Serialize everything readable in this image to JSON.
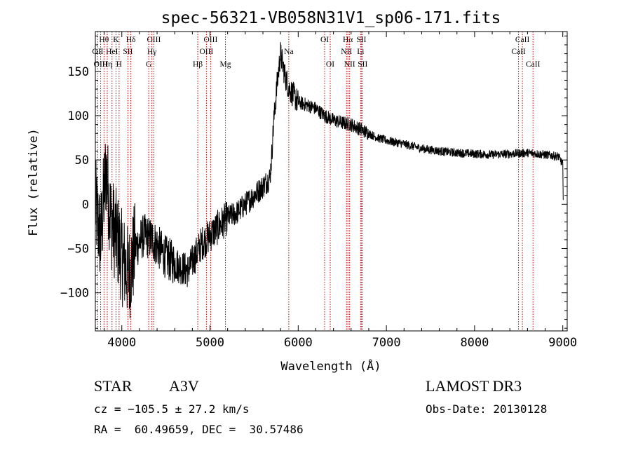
{
  "chart_data": {
    "type": "line",
    "title": "spec-56321-VB058N31V1_sp06-171.fits",
    "xlabel": "Wavelength (Å)",
    "ylabel": "Flux (relative)",
    "xlim": [
      3700,
      9050
    ],
    "ylim": [
      -143,
      195
    ],
    "xticks": [
      {
        "value": 4000,
        "label": "4000"
      },
      {
        "value": 5000,
        "label": "5000"
      },
      {
        "value": 6000,
        "label": "6000"
      },
      {
        "value": 7000,
        "label": "7000"
      },
      {
        "value": 8000,
        "label": "8000"
      },
      {
        "value": 9000,
        "label": "9000"
      }
    ],
    "yticks": [
      {
        "value": -100,
        "label": "−100"
      },
      {
        "value": -50,
        "label": "−50"
      },
      {
        "value": 0,
        "label": "0"
      },
      {
        "value": 50,
        "label": "50"
      },
      {
        "value": 100,
        "label": "100"
      },
      {
        "value": 150,
        "label": "150"
      }
    ],
    "spectrum_anchors": [
      [
        3700,
        0
      ],
      [
        3760,
        -40
      ],
      [
        3820,
        40
      ],
      [
        3880,
        -20
      ],
      [
        3950,
        -40
      ],
      [
        4000,
        -60
      ],
      [
        4080,
        -80
      ],
      [
        4150,
        -50
      ],
      [
        4250,
        -35
      ],
      [
        4350,
        -40
      ],
      [
        4500,
        -60
      ],
      [
        4650,
        -70
      ],
      [
        4750,
        -75
      ],
      [
        4850,
        -55
      ],
      [
        4900,
        -45
      ],
      [
        5000,
        -35
      ],
      [
        5100,
        -25
      ],
      [
        5200,
        -15
      ],
      [
        5300,
        -10
      ],
      [
        5400,
        0
      ],
      [
        5500,
        10
      ],
      [
        5600,
        20
      ],
      [
        5680,
        30
      ],
      [
        5700,
        55
      ],
      [
        5720,
        90
      ],
      [
        5760,
        135
      ],
      [
        5800,
        170
      ],
      [
        5850,
        145
      ],
      [
        5900,
        130
      ],
      [
        6000,
        115
      ],
      [
        6100,
        112
      ],
      [
        6200,
        108
      ],
      [
        6300,
        100
      ],
      [
        6400,
        95
      ],
      [
        6500,
        92
      ],
      [
        6600,
        90
      ],
      [
        6700,
        85
      ],
      [
        6800,
        80
      ],
      [
        6900,
        75
      ],
      [
        7000,
        72
      ],
      [
        7200,
        68
      ],
      [
        7400,
        63
      ],
      [
        7600,
        60
      ],
      [
        7800,
        58
      ],
      [
        8000,
        57
      ],
      [
        8200,
        56
      ],
      [
        8400,
        57
      ],
      [
        8600,
        58
      ],
      [
        8800,
        56
      ],
      [
        8950,
        54
      ],
      [
        9000,
        45
      ],
      [
        9005,
        0
      ]
    ],
    "lines": [
      {
        "label": "Hθ",
        "wavelength": 3798,
        "row": 0
      },
      {
        "label": "OII",
        "wavelength": 3727,
        "row": 1
      },
      {
        "label": "OIII",
        "wavelength": 3760,
        "row": 2
      },
      {
        "label": "K",
        "wavelength": 3934,
        "row": 0
      },
      {
        "label": "HeI",
        "wavelength": 3889,
        "row": 1
      },
      {
        "label": "Hη",
        "wavelength": 3835,
        "row": 2
      },
      {
        "label": "SII",
        "wavelength": 4069,
        "row": 1
      },
      {
        "label": "H",
        "wavelength": 3969,
        "row": 2
      },
      {
        "label": "Hδ",
        "wavelength": 4102,
        "row": 0
      },
      {
        "label": "OIII",
        "wavelength": 4363,
        "row": 0
      },
      {
        "label": "Hγ",
        "wavelength": 4341,
        "row": 1
      },
      {
        "label": "G",
        "wavelength": 4305,
        "row": 2
      },
      {
        "label": "OIII",
        "wavelength": 5007,
        "row": 0
      },
      {
        "label": "OIII",
        "wavelength": 4959,
        "row": 1
      },
      {
        "label": "Hβ",
        "wavelength": 4861,
        "row": 2
      },
      {
        "label": "Mg",
        "wavelength": 5175,
        "row": 2
      },
      {
        "label": "Na",
        "wavelength": 5893,
        "row": 1
      },
      {
        "label": "OI",
        "wavelength": 6300,
        "row": 0
      },
      {
        "label": "OI",
        "wavelength": 6363,
        "row": 2
      },
      {
        "label": "Hα",
        "wavelength": 6563,
        "row": 0
      },
      {
        "label": "SII",
        "wavelength": 6716,
        "row": 0
      },
      {
        "label": "NII",
        "wavelength": 6548,
        "row": 1
      },
      {
        "label": "Li",
        "wavelength": 6708,
        "row": 1
      },
      {
        "label": "NII",
        "wavelength": 6583,
        "row": 2
      },
      {
        "label": "SII",
        "wavelength": 6731,
        "row": 2
      },
      {
        "label": "CaII",
        "wavelength": 8542,
        "row": 0
      },
      {
        "label": "CaII",
        "wavelength": 8498,
        "row": 1
      },
      {
        "label": "CaII",
        "wavelength": 8662,
        "row": 2
      }
    ]
  },
  "info": {
    "object_class": "STAR",
    "subclass": "A3V",
    "survey": "LAMOST DR3",
    "redshift": "cz = −105.5 ± 27.2 km/s",
    "obs_date": "Obs-Date: 20130128",
    "coords": "RA =  60.49659, DEC =  30.57486"
  }
}
